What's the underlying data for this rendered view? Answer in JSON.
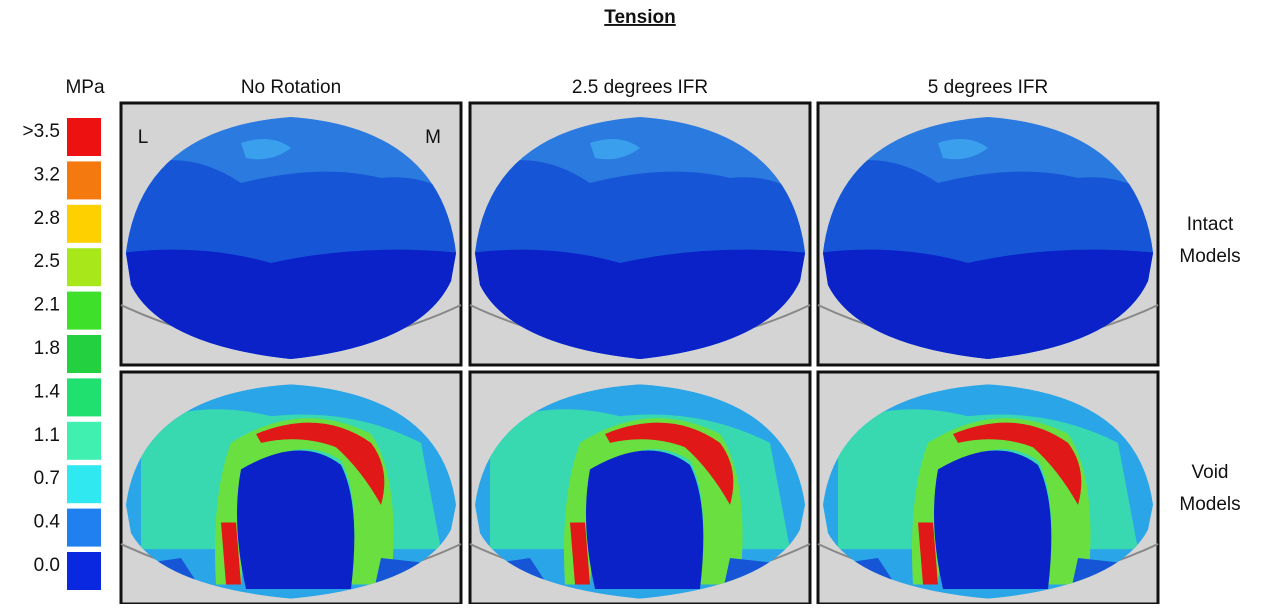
{
  "title": "Tension",
  "legend": {
    "unit": "MPa",
    "items": [
      {
        "label": ">3.5",
        "color": "#ee1111"
      },
      {
        "label": "3.2",
        "color": "#f47a10"
      },
      {
        "label": "2.8",
        "color": "#fed000"
      },
      {
        "label": "2.5",
        "color": "#a8e81a"
      },
      {
        "label": "2.1",
        "color": "#3ee02a"
      },
      {
        "label": "1.8",
        "color": "#22d040"
      },
      {
        "label": "1.4",
        "color": "#20e070"
      },
      {
        "label": "1.1",
        "color": "#40f0b0"
      },
      {
        "label": "0.7",
        "color": "#30e8f0"
      },
      {
        "label": "0.4",
        "color": "#2080f0"
      },
      {
        "label": "0.0",
        "color": "#0a28e0"
      }
    ]
  },
  "columns": [
    "No Rotation",
    "2.5 degrees IFR",
    "5 degrees IFR"
  ],
  "rows": [
    {
      "label": [
        "Intact",
        "Models"
      ]
    },
    {
      "label": [
        "Void",
        "Models"
      ]
    }
  ],
  "panel_labels": {
    "left": "L",
    "right": "M"
  }
}
